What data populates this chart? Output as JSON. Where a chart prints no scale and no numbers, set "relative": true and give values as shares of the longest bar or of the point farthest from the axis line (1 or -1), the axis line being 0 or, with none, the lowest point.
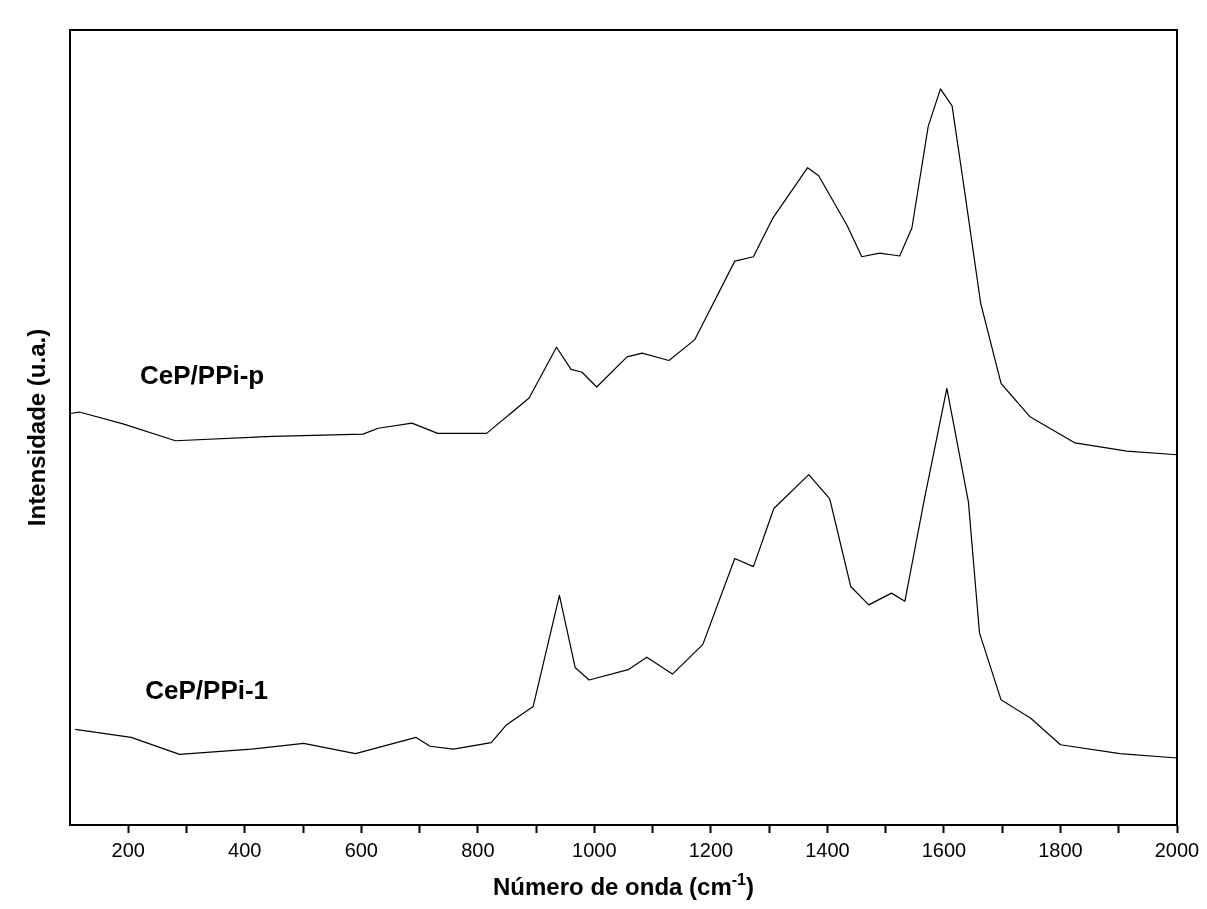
{
  "chart_data": {
    "type": "line",
    "relative": true,
    "xlabel": "Número de onda (cm$^{-1}$)",
    "ylabel": "Intensidade (u.a.)",
    "xlim": [
      100,
      2000
    ],
    "xticks": [
      200,
      {
        "value": 300,
        "label": null
      },
      400,
      {
        "value": 500,
        "label": null
      },
      600,
      {
        "value": 700,
        "label": null
      },
      800,
      {
        "value": 900,
        "label": null
      },
      1000,
      {
        "value": 1100,
        "label": null
      },
      1200,
      {
        "value": 1300,
        "label": null
      },
      1400,
      {
        "value": 1500,
        "label": null
      },
      1600,
      {
        "value": 1700,
        "label": null
      },
      1800,
      {
        "value": 1900,
        "label": null
      },
      2000
    ],
    "grid": false,
    "legend": false,
    "marker": "none",
    "line_style": "solid",
    "series": [
      {
        "name": "CeP/PPi-p",
        "color": "#000000",
        "x": [
          100,
          116,
          191,
          281,
          448,
          603,
          629,
          687,
          731,
          815,
          888,
          935,
          960,
          979,
          1004,
          1056,
          1082,
          1128,
          1172,
          1241,
          1273,
          1306,
          1366,
          1385,
          1434,
          1459,
          1490,
          1524,
          1545,
          1573,
          1594,
          1614,
          1636,
          1663,
          1698,
          1747,
          1825,
          1914,
          2000
        ],
        "values": [
          0.559,
          0.561,
          0.545,
          0.522,
          0.528,
          0.531,
          0.539,
          0.546,
          0.532,
          0.532,
          0.58,
          0.649,
          0.619,
          0.615,
          0.595,
          0.636,
          0.641,
          0.631,
          0.659,
          0.766,
          0.772,
          0.824,
          0.893,
          0.882,
          0.814,
          0.772,
          0.777,
          0.773,
          0.811,
          0.949,
          1,
          0.977,
          0.858,
          0.709,
          0.6,
          0.555,
          0.519,
          0.508,
          0.503
        ]
      },
      {
        "name": "CeP/PPi-1",
        "color": "#000000",
        "x": [
          109,
          205,
          288,
          411,
          501,
          590,
          694,
          718,
          758,
          823,
          849,
          895,
          940,
          967,
          991,
          1058,
          1090,
          1134,
          1186,
          1241,
          1273,
          1308,
          1368,
          1404,
          1440,
          1471,
          1510,
          1533,
          1566,
          1605,
          1642,
          1661,
          1698,
          1749,
          1800,
          1902,
          2000
        ],
        "values": [
          0.13,
          0.119,
          0.096,
          0.103,
          0.111,
          0.097,
          0.119,
          0.107,
          0.103,
          0.112,
          0.136,
          0.161,
          0.312,
          0.214,
          0.197,
          0.211,
          0.228,
          0.205,
          0.245,
          0.362,
          0.351,
          0.43,
          0.476,
          0.443,
          0.324,
          0.299,
          0.315,
          0.304,
          0.441,
          0.593,
          0.439,
          0.261,
          0.17,
          0.145,
          0.109,
          0.097,
          0.091
        ]
      }
    ]
  }
}
